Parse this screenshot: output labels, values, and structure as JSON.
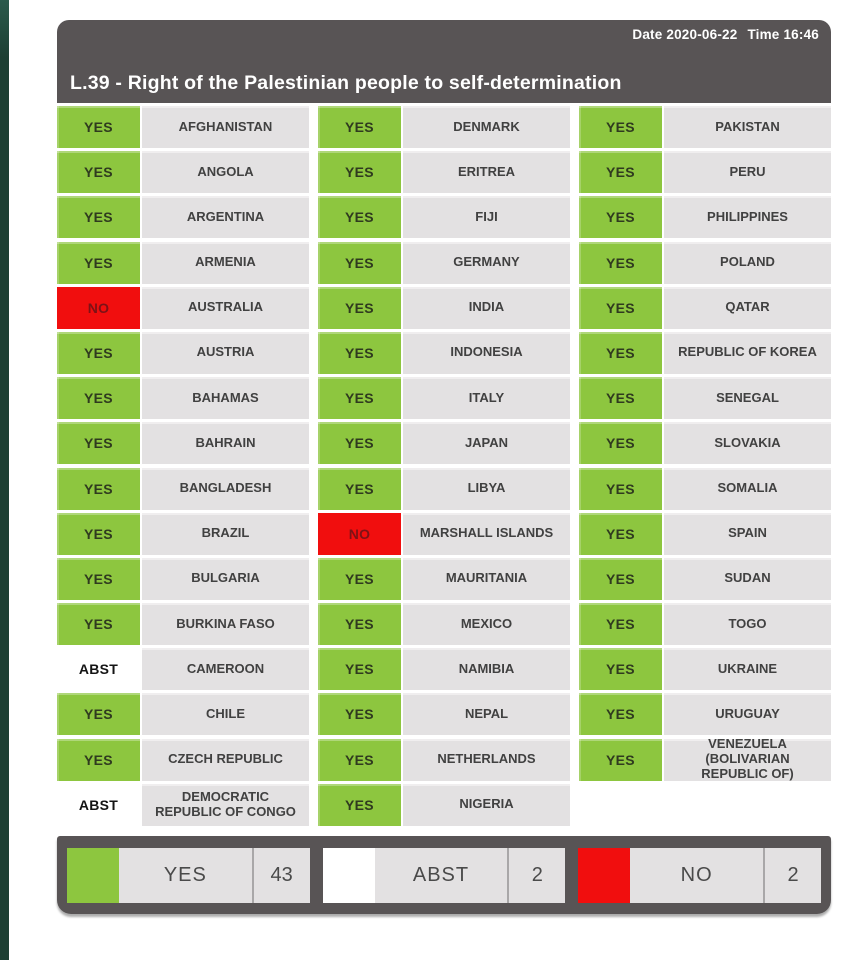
{
  "header": {
    "date": "Date 2020-06-22",
    "time": "Time 16:46",
    "title": "L.39 - Right of the Palestinian people to self-determination"
  },
  "colors": {
    "yes": "#8dc63f",
    "no": "#f10e0e",
    "abst": "#ffffff",
    "chrome": "#585455",
    "cell": "#e3e1e2",
    "stripe": "#1d3f33"
  },
  "votes": {
    "columns": [
      [
        {
          "vote": "YES",
          "country": "AFGHANISTAN"
        },
        {
          "vote": "YES",
          "country": "ANGOLA"
        },
        {
          "vote": "YES",
          "country": "ARGENTINA"
        },
        {
          "vote": "YES",
          "country": "ARMENIA"
        },
        {
          "vote": "NO",
          "country": "AUSTRALIA"
        },
        {
          "vote": "YES",
          "country": "AUSTRIA"
        },
        {
          "vote": "YES",
          "country": "BAHAMAS"
        },
        {
          "vote": "YES",
          "country": "BAHRAIN"
        },
        {
          "vote": "YES",
          "country": "BANGLADESH"
        },
        {
          "vote": "YES",
          "country": "BRAZIL"
        },
        {
          "vote": "YES",
          "country": "BULGARIA"
        },
        {
          "vote": "YES",
          "country": "BURKINA FASO"
        },
        {
          "vote": "ABST",
          "country": "CAMEROON"
        },
        {
          "vote": "YES",
          "country": "CHILE"
        },
        {
          "vote": "YES",
          "country": "CZECH REPUBLIC"
        },
        {
          "vote": "ABST",
          "country": "DEMOCRATIC REPUBLIC OF CONGO"
        }
      ],
      [
        {
          "vote": "YES",
          "country": "DENMARK"
        },
        {
          "vote": "YES",
          "country": "ERITREA"
        },
        {
          "vote": "YES",
          "country": "FIJI"
        },
        {
          "vote": "YES",
          "country": "GERMANY"
        },
        {
          "vote": "YES",
          "country": "INDIA"
        },
        {
          "vote": "YES",
          "country": "INDONESIA"
        },
        {
          "vote": "YES",
          "country": "ITALY"
        },
        {
          "vote": "YES",
          "country": "JAPAN"
        },
        {
          "vote": "YES",
          "country": "LIBYA"
        },
        {
          "vote": "NO",
          "country": "MARSHALL ISLANDS"
        },
        {
          "vote": "YES",
          "country": "MAURITANIA"
        },
        {
          "vote": "YES",
          "country": "MEXICO"
        },
        {
          "vote": "YES",
          "country": "NAMIBIA"
        },
        {
          "vote": "YES",
          "country": "NEPAL"
        },
        {
          "vote": "YES",
          "country": "NETHERLANDS"
        },
        {
          "vote": "YES",
          "country": "NIGERIA"
        }
      ],
      [
        {
          "vote": "YES",
          "country": "PAKISTAN"
        },
        {
          "vote": "YES",
          "country": "PERU"
        },
        {
          "vote": "YES",
          "country": "PHILIPPINES"
        },
        {
          "vote": "YES",
          "country": "POLAND"
        },
        {
          "vote": "YES",
          "country": "QATAR"
        },
        {
          "vote": "YES",
          "country": "REPUBLIC OF KOREA"
        },
        {
          "vote": "YES",
          "country": "SENEGAL"
        },
        {
          "vote": "YES",
          "country": "SLOVAKIA"
        },
        {
          "vote": "YES",
          "country": "SOMALIA"
        },
        {
          "vote": "YES",
          "country": "SPAIN"
        },
        {
          "vote": "YES",
          "country": "SUDAN"
        },
        {
          "vote": "YES",
          "country": "TOGO"
        },
        {
          "vote": "YES",
          "country": "UKRAINE"
        },
        {
          "vote": "YES",
          "country": "URUGUAY"
        },
        {
          "vote": "YES",
          "country": "VENEZUELA (BOLIVARIAN REPUBLIC OF)"
        }
      ]
    ]
  },
  "summary": [
    {
      "label": "YES",
      "count": "43",
      "color": "#8dc63f"
    },
    {
      "label": "ABST",
      "count": "2",
      "color": "#ffffff"
    },
    {
      "label": "NO",
      "count": "2",
      "color": "#f10e0e"
    }
  ]
}
